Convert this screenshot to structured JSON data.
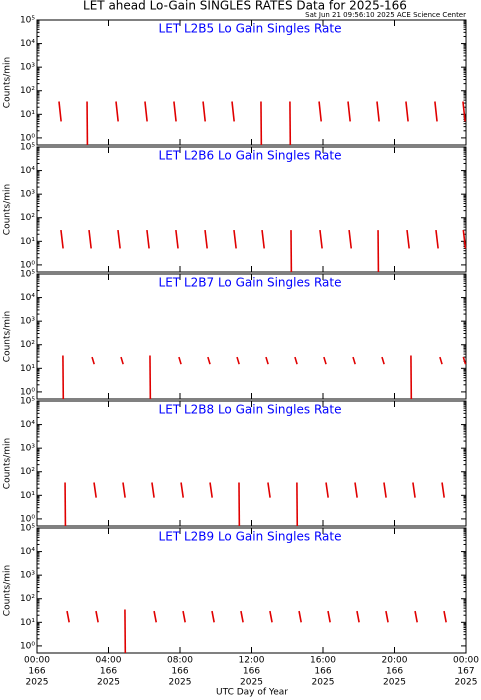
{
  "header": {
    "title": "LET ahead Lo-Gain SINGLES RATES Data for 2025-166",
    "timestamp": "Sat Jun 21 09:56:10 2025 ACE Science Center",
    "x_axis_label": "UTC Day of Year"
  },
  "chart_data": [
    {
      "type": "line",
      "title": "LET L2B5 Lo Gain Singles Rate",
      "y_label": "Counts/min",
      "log_y": true,
      "xlim": [
        0,
        24
      ],
      "ylim": [
        0.5,
        100000
      ],
      "yticks": [
        {
          "value": 1,
          "label": "10⁰"
        },
        {
          "value": 10,
          "label": "10¹"
        },
        {
          "value": 100,
          "label": "10²"
        },
        {
          "value": 1000,
          "label": "10³"
        },
        {
          "value": 10000,
          "label": "10⁴"
        },
        {
          "value": 100000,
          "label": "10⁵"
        }
      ],
      "xticks": [
        0,
        4,
        8,
        12,
        16,
        20,
        24
      ],
      "series": [
        {
          "color": "#e00000",
          "x": [
            1.23,
            1.35,
            1.43,
            2.8,
            2.82,
            3.0,
            4.42,
            4.54,
            4.62,
            6.04,
            6.16,
            6.24,
            7.66,
            7.78,
            7.86,
            9.29,
            9.41,
            9.49,
            10.91,
            11.03,
            11.11,
            12.53,
            12.55,
            12.73,
            14.15,
            14.17,
            14.35,
            15.78,
            15.9,
            15.98,
            17.4,
            17.52,
            17.6,
            19.02,
            19.14,
            19.22,
            20.64,
            20.76,
            20.84,
            22.26,
            22.38,
            22.46,
            23.83,
            23.95
          ],
          "values": [
            35,
            5,
            null,
            35,
            0.5,
            null,
            35,
            5,
            null,
            35,
            5,
            null,
            35,
            5,
            null,
            35,
            5,
            null,
            35,
            5,
            null,
            35,
            0.5,
            null,
            35,
            0.5,
            null,
            35,
            5,
            null,
            35,
            5,
            null,
            35,
            5,
            null,
            35,
            5,
            null,
            35,
            5,
            null,
            35,
            5
          ]
        }
      ]
    },
    {
      "type": "line",
      "title": "LET L2B6 Lo Gain Singles Rate",
      "y_label": "Counts/min",
      "log_y": true,
      "xlim": [
        0,
        24
      ],
      "ylim": [
        0.5,
        100000
      ],
      "yticks": [
        {
          "value": 1,
          "label": "10⁰"
        },
        {
          "value": 10,
          "label": "10¹"
        },
        {
          "value": 100,
          "label": "10²"
        },
        {
          "value": 1000,
          "label": "10³"
        },
        {
          "value": 10000,
          "label": "10⁴"
        },
        {
          "value": 100000,
          "label": "10⁵"
        }
      ],
      "xticks": [
        0,
        4,
        8,
        12,
        16,
        20,
        24
      ],
      "series": [
        {
          "color": "#e00000",
          "x": [
            1.34,
            1.46,
            1.54,
            2.91,
            3.03,
            3.11,
            4.53,
            4.65,
            4.73,
            6.15,
            6.27,
            6.35,
            7.77,
            7.89,
            7.97,
            9.4,
            9.52,
            9.6,
            11.02,
            11.14,
            11.22,
            12.59,
            12.71,
            12.79,
            14.21,
            14.23,
            14.41,
            15.83,
            15.95,
            16.03,
            17.46,
            17.58,
            17.66,
            19.08,
            19.1,
            19.28,
            20.7,
            20.82,
            20.9,
            22.32,
            22.44,
            22.52,
            23.85,
            23.97
          ],
          "values": [
            30,
            5,
            null,
            30,
            5,
            null,
            30,
            5,
            null,
            30,
            5,
            null,
            30,
            5,
            null,
            30,
            5,
            null,
            30,
            5,
            null,
            30,
            5,
            null,
            30,
            0.5,
            null,
            30,
            5,
            null,
            30,
            5,
            null,
            30,
            0.5,
            null,
            30,
            5,
            null,
            30,
            5,
            null,
            30,
            5
          ]
        }
      ]
    },
    {
      "type": "line",
      "title": "LET L2B7 Lo Gain Singles Rate",
      "y_label": "Counts/min",
      "log_y": true,
      "xlim": [
        0,
        24
      ],
      "ylim": [
        0.5,
        100000
      ],
      "yticks": [
        {
          "value": 1,
          "label": "10⁰"
        },
        {
          "value": 10,
          "label": "10¹"
        },
        {
          "value": 100,
          "label": "10²"
        },
        {
          "value": 1000,
          "label": "10³"
        },
        {
          "value": 10000,
          "label": "10⁴"
        },
        {
          "value": 100000,
          "label": "10⁵"
        }
      ],
      "xticks": [
        0,
        4,
        8,
        12,
        16,
        20,
        24
      ],
      "series": [
        {
          "color": "#e00000",
          "x": [
            1.45,
            1.47,
            1.65,
            3.08,
            3.2,
            3.28,
            4.7,
            4.82,
            4.9,
            6.32,
            6.34,
            6.52,
            7.94,
            8.06,
            8.14,
            9.56,
            9.68,
            9.76,
            11.19,
            11.31,
            11.39,
            12.81,
            12.93,
            13.01,
            14.43,
            14.55,
            14.63,
            16.05,
            16.17,
            16.25,
            17.68,
            17.8,
            17.88,
            19.3,
            19.42,
            19.5,
            20.92,
            20.94,
            21.12,
            22.54,
            22.66,
            22.74,
            23.85,
            23.97
          ],
          "values": [
            35,
            0.5,
            null,
            30,
            15,
            null,
            30,
            15,
            null,
            35,
            0.5,
            null,
            30,
            15,
            null,
            30,
            15,
            null,
            30,
            15,
            null,
            30,
            15,
            null,
            30,
            15,
            null,
            30,
            15,
            null,
            30,
            15,
            null,
            30,
            15,
            null,
            35,
            0.5,
            null,
            30,
            15,
            null,
            30,
            15
          ]
        }
      ]
    },
    {
      "type": "line",
      "title": "LET L2B8 Lo Gain Singles Rate",
      "y_label": "Counts/min",
      "log_y": true,
      "xlim": [
        0,
        24
      ],
      "ylim": [
        0.5,
        100000
      ],
      "yticks": [
        {
          "value": 1,
          "label": "10⁰"
        },
        {
          "value": 10,
          "label": "10¹"
        },
        {
          "value": 100,
          "label": "10²"
        },
        {
          "value": 1000,
          "label": "10³"
        },
        {
          "value": 10000,
          "label": "10⁴"
        },
        {
          "value": 100000,
          "label": "10⁵"
        }
      ],
      "xticks": [
        0,
        4,
        8,
        12,
        16,
        20,
        24
      ],
      "series": [
        {
          "color": "#e00000",
          "x": [
            1.57,
            1.59,
            1.77,
            3.19,
            3.31,
            3.39,
            4.81,
            4.93,
            5.01,
            6.43,
            6.55,
            6.63,
            8.06,
            8.18,
            8.26,
            9.68,
            9.8,
            9.88,
            11.3,
            11.32,
            11.5,
            12.92,
            13.04,
            13.12,
            14.54,
            14.56,
            14.74,
            16.17,
            16.29,
            16.37,
            17.79,
            17.91,
            17.99,
            19.41,
            19.53,
            19.61,
            21.03,
            21.15,
            21.23,
            22.66,
            22.78
          ],
          "values": [
            35,
            0.5,
            null,
            35,
            8,
            null,
            35,
            8,
            null,
            35,
            8,
            null,
            35,
            8,
            null,
            35,
            8,
            null,
            35,
            0.5,
            null,
            35,
            8,
            null,
            35,
            0.5,
            null,
            35,
            8,
            null,
            35,
            8,
            null,
            35,
            8,
            null,
            35,
            8,
            null,
            35,
            8
          ]
        }
      ]
    },
    {
      "type": "line",
      "title": "LET L2B9 Lo Gain Singles Rate",
      "y_label": "Counts/min",
      "log_y": true,
      "xlim": [
        0,
        24
      ],
      "ylim": [
        0.5,
        100000
      ],
      "yticks": [
        {
          "value": 1,
          "label": "10⁰"
        },
        {
          "value": 10,
          "label": "10¹"
        },
        {
          "value": 100,
          "label": "10²"
        },
        {
          "value": 1000,
          "label": "10³"
        },
        {
          "value": 10000,
          "label": "10⁴"
        },
        {
          "value": 100000,
          "label": "10⁵"
        }
      ],
      "xticks": [
        {
          "value": 0,
          "label": "00:00"
        },
        {
          "value": 4,
          "label": "04:00"
        },
        {
          "value": 8,
          "label": "08:00"
        },
        {
          "value": 12,
          "label": "12:00"
        },
        {
          "value": 16,
          "label": "16:00"
        },
        {
          "value": 20,
          "label": "20:00"
        },
        {
          "value": 24,
          "label": "00:00"
        }
      ],
      "xtick_days": [
        "166",
        "166",
        "166",
        "166",
        "166",
        "166",
        "167"
      ],
      "xtick_years": [
        "2025",
        "2025",
        "2025",
        "2025",
        "2025",
        "2025",
        "2025"
      ],
      "series": [
        {
          "color": "#e00000",
          "x": [
            1.68,
            1.8,
            1.88,
            3.3,
            3.42,
            3.5,
            4.92,
            4.94,
            5.12,
            6.55,
            6.67,
            6.75,
            8.17,
            8.29,
            8.37,
            9.79,
            9.91,
            9.99,
            11.41,
            11.53,
            11.61,
            13.03,
            13.15,
            13.23,
            14.66,
            14.78,
            14.86,
            16.28,
            16.4,
            16.48,
            17.9,
            18.02,
            18.1,
            19.52,
            19.64,
            19.72,
            21.15,
            21.27,
            21.35,
            22.77,
            22.89
          ],
          "values": [
            30,
            10,
            null,
            30,
            10,
            null,
            35,
            0.5,
            null,
            30,
            10,
            null,
            30,
            10,
            null,
            30,
            10,
            null,
            30,
            10,
            null,
            30,
            10,
            null,
            30,
            10,
            null,
            30,
            10,
            null,
            30,
            10,
            null,
            30,
            10,
            null,
            30,
            10,
            null,
            30,
            10
          ]
        }
      ]
    }
  ]
}
